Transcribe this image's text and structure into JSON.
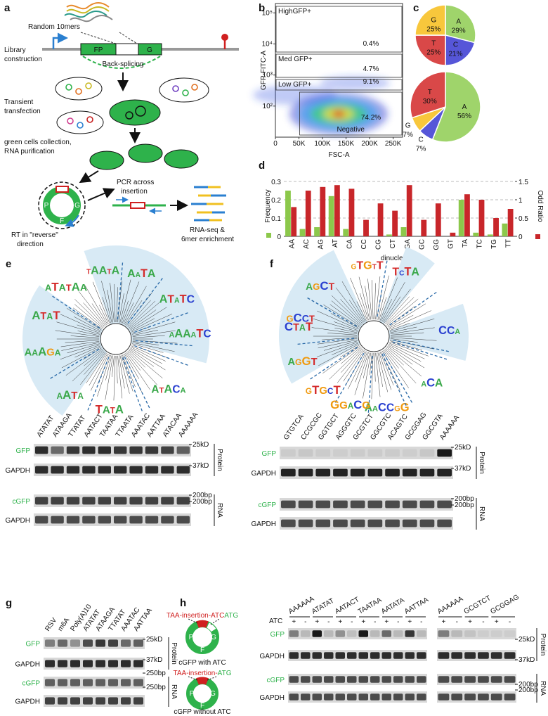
{
  "panel_labels": [
    "a",
    "b",
    "c",
    "d",
    "e",
    "f",
    "g",
    "h"
  ],
  "schematic": {
    "random": "Random 10mers",
    "library": [
      "Library",
      "construction"
    ],
    "fp": "FP",
    "g": "G",
    "backsplicing": "Back-splicing",
    "transfection": [
      "Transient",
      "transfection"
    ],
    "collection": [
      "green cells collection,",
      "RNA purification"
    ],
    "pcr": [
      "PCR across",
      "insertion"
    ],
    "rt": [
      "RT in \"reverse\"",
      "direction"
    ],
    "rnaseq": [
      "RNA-seq &",
      "6mer enrichment"
    ],
    "ring": [
      "P",
      "F",
      "G"
    ]
  },
  "chart_data": [
    {
      "type": "flow",
      "ylabel": "GFP-FITC-A",
      "xlabel": "FSC-A",
      "xlim": [
        0,
        270000
      ],
      "xticks": [
        0,
        {
          "value": 50000,
          "label": "50K"
        },
        {
          "value": 100000,
          "label": "100K"
        },
        {
          "value": 150000,
          "label": "150K"
        },
        {
          "value": 200000,
          "label": "200K"
        },
        {
          "value": 250000,
          "label": "250K"
        }
      ],
      "ylog": true,
      "ylim": [
        10,
        200000
      ],
      "yticks": [
        {
          "value": 100,
          "label": "10²"
        },
        {
          "value": 1000,
          "label": "10³"
        },
        {
          "value": 10000,
          "label": "10⁴"
        },
        {
          "value": 100000,
          "label": "10⁵"
        }
      ],
      "categories": [
        "HighGFP+",
        "Med GFP+",
        "Low GFP+",
        "Negative"
      ],
      "values": [
        0.4,
        4.7,
        9.1,
        74.2
      ],
      "value_labels": [
        "0.4%",
        "4.7%",
        "9.1%",
        "74.2%"
      ]
    },
    {
      "type": "pie",
      "categories": [
        "A",
        "C",
        "T",
        "G"
      ],
      "values": [
        29,
        21,
        25,
        25
      ],
      "value_labels": [
        "29%",
        "21%",
        "25%",
        "25%"
      ],
      "colors": [
        "#9fd46b",
        "#5656d8",
        "#d94848",
        "#f8c73c"
      ]
    },
    {
      "type": "pie",
      "categories": [
        "A",
        "C",
        "G",
        "T"
      ],
      "values": [
        56,
        7,
        7,
        30
      ],
      "value_labels": [
        "56%",
        "7%",
        "7%",
        "30%"
      ],
      "colors": [
        "#9fd46b",
        "#5656d8",
        "#f8c73c",
        "#d94848"
      ]
    },
    {
      "type": "bar",
      "xlabel": "dinucleotide",
      "categories": [
        "AA",
        "AC",
        "AG",
        "AT",
        "CA",
        "CC",
        "CG",
        "CT",
        "GA",
        "GC",
        "GG",
        "GT",
        "TA",
        "TC",
        "TG",
        "TT"
      ],
      "series": [
        {
          "name": "Frequency",
          "color": "#8cc84b",
          "values": [
            0.25,
            0.04,
            0.05,
            0.22,
            0.04,
            0,
            0,
            0.01,
            0.05,
            0,
            0,
            0,
            0.2,
            0.02,
            0.01,
            0.07
          ]
        },
        {
          "name": "Odd Ratio",
          "color": "#c8262a",
          "axis": "y2",
          "values": [
            0.8,
            1.25,
            1.35,
            1.4,
            1.3,
            0.45,
            0.9,
            0.7,
            1.4,
            0.45,
            0.9,
            0.1,
            1.15,
            1.0,
            0.5,
            0.75
          ]
        }
      ],
      "ylim": [
        0,
        0.3
      ],
      "yticks": [
        0,
        0.1,
        0.2,
        0.3
      ],
      "y2lim": [
        0,
        1.5
      ],
      "y2ticks": [
        0,
        0.5,
        1,
        1.5
      ],
      "grid": true
    }
  ],
  "motifs": {
    "e": [
      "TAATA",
      "AATA",
      "ATATC",
      "AAAATC",
      "ATACA",
      "TATA",
      "AATA",
      "AAAGA",
      "ATAT",
      "ATATAA"
    ],
    "f": [
      "GTGTT",
      "TCTA",
      "CCA",
      "ACA",
      "AACCGG",
      "GGACG",
      "GTGCT",
      "AGGT",
      "CTAT",
      "GCCT",
      "AGCT"
    ]
  },
  "blots": {
    "e": {
      "lanes": [
        "ATATAT",
        "ATAAGA",
        "TTATAT",
        "AATACT",
        "TAATAA",
        "TTAATA",
        "AAATAC",
        "AATTAA",
        "ATACAA",
        "AAAAAA"
      ],
      "rows": [
        "GFP",
        "GAPDH",
        "cGFP",
        "GAPDH"
      ],
      "markers": [
        "25kD",
        "37kD",
        "200bp",
        "200bp"
      ],
      "sections": [
        "Protein",
        "RNA"
      ]
    },
    "f": {
      "lanes": [
        "GTGTCA",
        "CCGCGC",
        "GGTGCT",
        "AGGGTC",
        "GCGTCT",
        "GGCGTC",
        "ACAGTC",
        "GCGGAG",
        "GGCGTA",
        "AAAAAA"
      ],
      "rows": [
        "GFP",
        "GAPDH",
        "cGFP",
        "GAPDH"
      ],
      "markers": [
        "25kD",
        "37kD",
        "200bp",
        "200bp"
      ],
      "sections": [
        "Protein",
        "RNA"
      ]
    },
    "g": {
      "lanes": [
        "RSV",
        "m6A",
        "Poly(A)10",
        "ATATAT",
        "ATAAGA",
        "TTATAT",
        "AAATAC",
        "AATTAA"
      ],
      "rows": [
        "GFP",
        "GAPDH",
        "cGFP",
        "GAPDH"
      ],
      "markers": [
        "25kD",
        "37kD",
        "250bp",
        "250bp"
      ],
      "sections": [
        "Protein",
        "RNA"
      ]
    }
  },
  "panel_h": {
    "constructs": [
      {
        "parts": [
          "TAA-insertion-ATC",
          "ATG"
        ],
        "caption": "cGFP with ATC"
      },
      {
        "parts": [
          "TAA-insertion-",
          "ATG"
        ],
        "caption": "cGFP without ATC"
      }
    ],
    "ring": [
      "P",
      "F",
      "G"
    ],
    "atc_label": "ATC",
    "signs": [
      "+",
      "-"
    ],
    "groups": [
      [
        "AAAAAA",
        "ATATAT",
        "AATACT",
        "TAATAA",
        "AATATA",
        "AATTAA"
      ],
      [
        "AAAAAA",
        "GCGTCT",
        "GCGGAG"
      ]
    ],
    "rows": [
      "GFP",
      "GAPDH",
      "cGFP",
      "GAPDH"
    ],
    "markers": [
      "25kD",
      "37kD",
      "200bp",
      "200bp"
    ],
    "sections": [
      "Protein",
      "RNA"
    ]
  }
}
